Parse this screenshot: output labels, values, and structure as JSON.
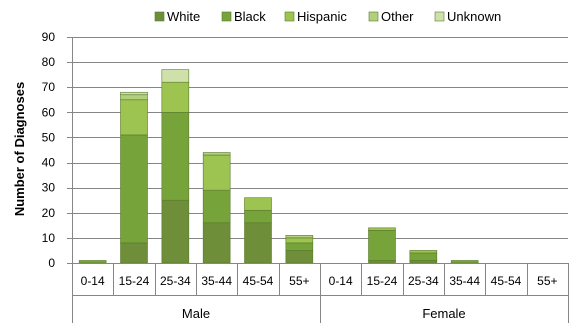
{
  "chart_data": {
    "type": "bar",
    "stacked": true,
    "title": "",
    "ylabel": "Number of Diagnoses",
    "xlabel": "",
    "ylim": [
      0,
      90
    ],
    "yticks": [
      0,
      10,
      20,
      30,
      40,
      50,
      60,
      70,
      80,
      90
    ],
    "grid": "horizontal",
    "legend_position": "top",
    "groups": [
      {
        "label": "Male",
        "categories": [
          "0-14",
          "15-24",
          "25-34",
          "35-44",
          "45-54",
          "55+"
        ]
      },
      {
        "label": "Female",
        "categories": [
          "0-14",
          "15-24",
          "25-34",
          "35-44",
          "45-54",
          "55+"
        ]
      }
    ],
    "series": [
      {
        "name": "White",
        "color": "#6E8E3A",
        "values": [
          0,
          8,
          25,
          16,
          16,
          5,
          0,
          1,
          1,
          0,
          0,
          0
        ]
      },
      {
        "name": "Black",
        "color": "#77A33B",
        "values": [
          1,
          43,
          35,
          13,
          5,
          3,
          0,
          12,
          3,
          1,
          0,
          0
        ]
      },
      {
        "name": "Hispanic",
        "color": "#9DC351",
        "values": [
          0,
          14,
          12,
          14,
          5,
          2,
          0,
          1,
          1,
          0,
          0,
          0
        ]
      },
      {
        "name": "Other",
        "color": "#B2CF7E",
        "values": [
          0,
          2,
          0,
          1,
          0,
          1,
          0,
          0,
          0,
          0,
          0,
          0
        ]
      },
      {
        "name": "Unknown",
        "color": "#CFE0AB",
        "values": [
          0,
          1,
          5,
          0,
          0,
          0,
          0,
          0,
          0,
          0,
          0,
          0
        ]
      }
    ]
  }
}
